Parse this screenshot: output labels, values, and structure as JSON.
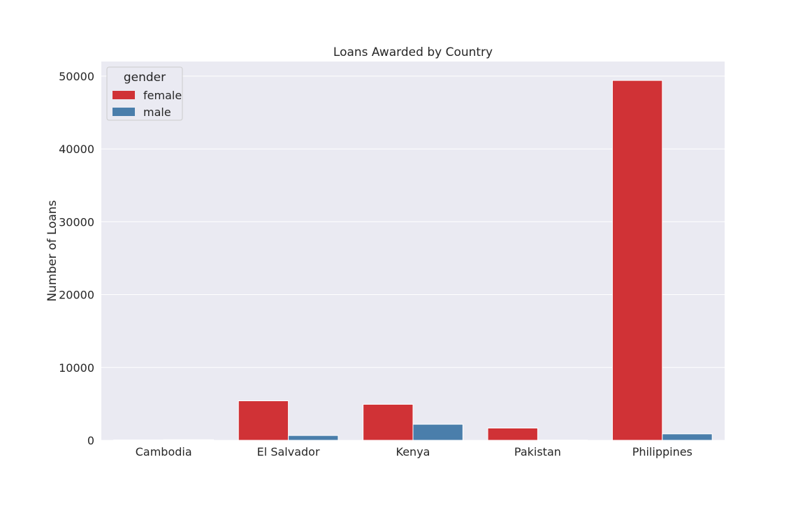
{
  "chart_data": {
    "type": "bar",
    "title": "Loans Awarded by Country",
    "xlabel": "",
    "ylabel": "Number of Loans",
    "categories": [
      "Cambodia",
      "El Salvador",
      "Kenya",
      "Pakistan",
      "Philippines"
    ],
    "series": [
      {
        "name": "female",
        "color": "#d03236",
        "values": [
          60,
          5420,
          4940,
          1680,
          49400
        ]
      },
      {
        "name": "male",
        "color": "#4a7eab",
        "values": [
          80,
          660,
          2200,
          30,
          880
        ]
      }
    ],
    "ylim": [
      0,
      52000
    ],
    "yticks": [
      0,
      10000,
      20000,
      30000,
      40000,
      50000
    ],
    "ytick_labels": [
      "0",
      "10000",
      "20000",
      "30000",
      "40000",
      "50000"
    ],
    "legend": {
      "title": "gender",
      "placement": "upper-left"
    },
    "grid": true,
    "background_color": "#eaeaf2",
    "grid_color": "#ffffff"
  }
}
